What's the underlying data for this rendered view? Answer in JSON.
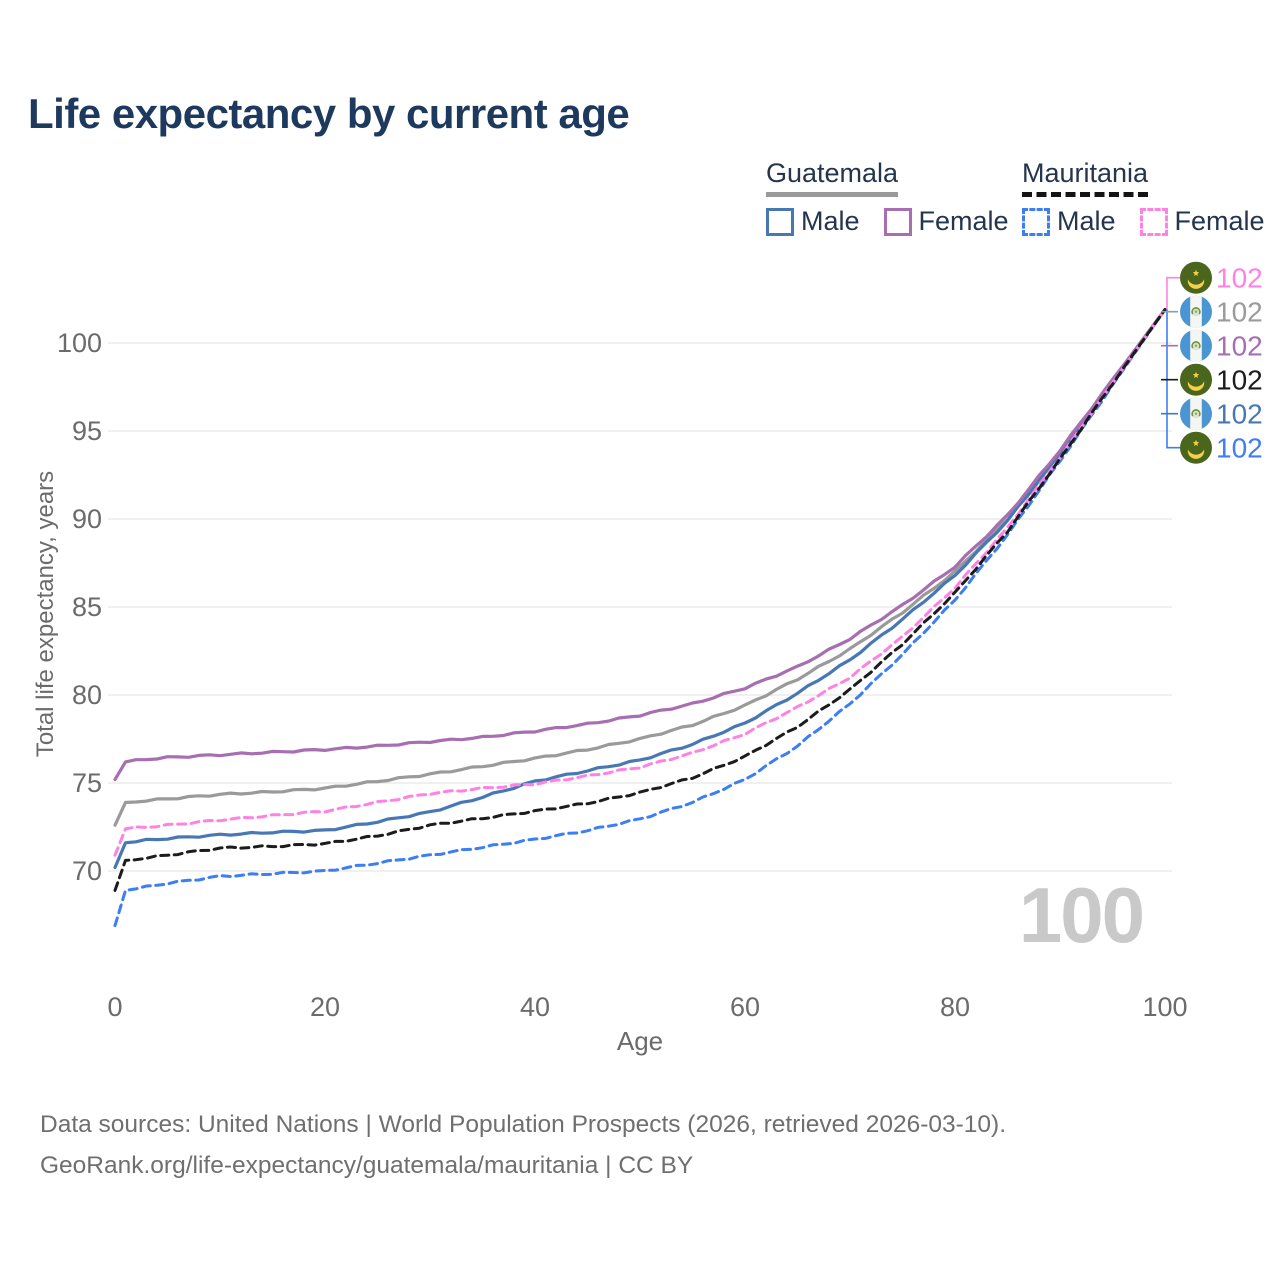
{
  "title": "Life expectancy by current age",
  "watermark": "100",
  "legend": {
    "groups": [
      {
        "label": "Guatemala",
        "line_style": "solid",
        "underline_color": "#9a9a9a",
        "items": [
          {
            "label": "Male",
            "color": "#4878b4"
          },
          {
            "label": "Female",
            "color": "#a76fb2"
          }
        ]
      },
      {
        "label": "Mauritania",
        "line_style": "dashed",
        "underline_color": "#141414",
        "items": [
          {
            "label": "Male",
            "color": "#3d7ef5"
          },
          {
            "label": "Female",
            "color": "#ff82e2"
          }
        ]
      }
    ]
  },
  "chart_data": {
    "type": "line",
    "title": "Life expectancy by current age",
    "xlabel": "Age",
    "ylabel": "Total life expectancy, years",
    "xlim": [
      0,
      100
    ],
    "x_ticks": [
      0,
      20,
      40,
      60,
      80,
      100
    ],
    "y_ticks": [
      70,
      75,
      80,
      85,
      90,
      95,
      100
    ],
    "grid": "horizontal",
    "legend_position": "top-right",
    "x": [
      0,
      1,
      3,
      5,
      10,
      15,
      20,
      25,
      30,
      35,
      40,
      45,
      50,
      55,
      60,
      65,
      70,
      75,
      80,
      85,
      90,
      95,
      100
    ],
    "series": [
      {
        "name": "Guatemala Both sexes",
        "color": "#9a9a9a",
        "dash": "solid",
        "values": [
          72.6,
          73.9,
          74.0,
          74.1,
          74.35,
          74.5,
          74.7,
          75.1,
          75.5,
          75.95,
          76.4,
          76.9,
          77.5,
          78.3,
          79.4,
          80.9,
          82.6,
          84.7,
          87.0,
          90.0,
          93.8,
          97.8,
          101.9
        ]
      },
      {
        "name": "Guatemala Male",
        "color": "#4878b4",
        "dash": "solid",
        "values": [
          70.2,
          71.6,
          71.75,
          71.85,
          72.05,
          72.2,
          72.3,
          72.8,
          73.35,
          74.2,
          75.1,
          75.7,
          76.3,
          77.2,
          78.4,
          80.1,
          82.0,
          84.3,
          86.8,
          89.9,
          93.7,
          97.8,
          101.9
        ]
      },
      {
        "name": "Guatemala Female",
        "color": "#a76fb2",
        "dash": "solid",
        "values": [
          75.2,
          76.2,
          76.35,
          76.45,
          76.6,
          76.75,
          76.9,
          77.1,
          77.35,
          77.6,
          77.95,
          78.35,
          78.85,
          79.5,
          80.4,
          81.6,
          83.2,
          85.1,
          87.3,
          90.2,
          93.9,
          97.9,
          101.9
        ]
      },
      {
        "name": "Mauritania Both sexes",
        "color": "#1c1c1c",
        "dash": "dashed",
        "values": [
          68.9,
          70.6,
          70.75,
          70.9,
          71.3,
          71.4,
          71.55,
          72.0,
          72.6,
          73.0,
          73.4,
          73.85,
          74.45,
          75.3,
          76.5,
          78.2,
          80.3,
          82.9,
          85.8,
          89.3,
          93.4,
          97.7,
          101.9
        ]
      },
      {
        "name": "Mauritania Male",
        "color": "#3d7ef5",
        "dash": "dashed",
        "values": [
          66.9,
          68.9,
          69.1,
          69.3,
          69.7,
          69.85,
          70.0,
          70.45,
          70.9,
          71.35,
          71.8,
          72.3,
          72.95,
          73.9,
          75.2,
          77.1,
          79.5,
          82.3,
          85.4,
          89.1,
          93.3,
          97.6,
          101.9
        ]
      },
      {
        "name": "Mauritania Female",
        "color": "#ff82e2",
        "dash": "dashed",
        "values": [
          70.9,
          72.4,
          72.5,
          72.6,
          72.9,
          73.15,
          73.4,
          73.9,
          74.4,
          74.7,
          74.95,
          75.4,
          75.9,
          76.7,
          77.8,
          79.3,
          81.0,
          83.3,
          86.1,
          89.5,
          93.5,
          97.7,
          101.9
        ]
      }
    ],
    "end_labels": [
      {
        "flag": "mauritania",
        "value": "102",
        "color": "#ff82e2"
      },
      {
        "flag": "guatemala",
        "value": "102",
        "color": "#9a9a9a"
      },
      {
        "flag": "guatemala",
        "value": "102",
        "color": "#a76fb2"
      },
      {
        "flag": "mauritania",
        "value": "102",
        "color": "#1c1c1c"
      },
      {
        "flag": "guatemala",
        "value": "102",
        "color": "#4878b4"
      },
      {
        "flag": "mauritania",
        "value": "102",
        "color": "#3d7ef5"
      }
    ]
  },
  "footer": {
    "line1": "Data sources: United Nations | World Population Prospects (2026, retrieved 2026-03-10).",
    "line2": "GeoRank.org/life-expectancy/guatemala/mauritania | CC BY"
  }
}
